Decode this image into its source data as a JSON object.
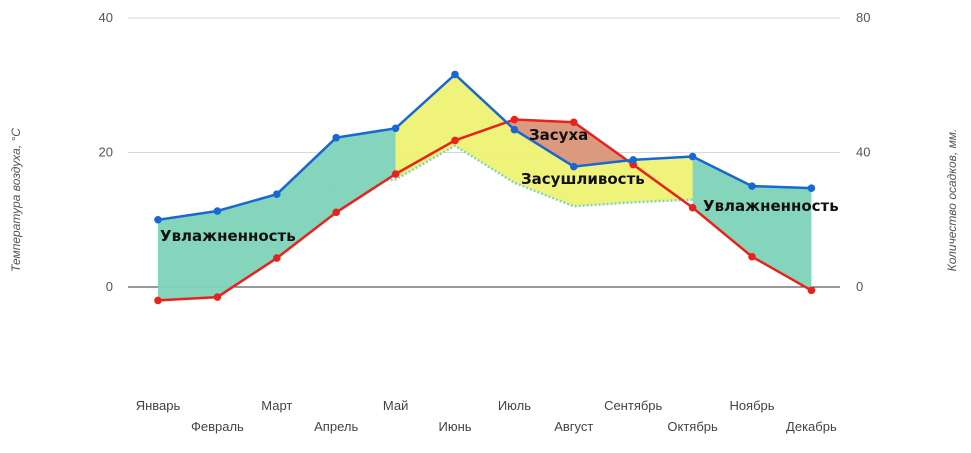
{
  "chart_data": {
    "type": "line",
    "title": "",
    "ylabel_left": "Температура воздуха, °С",
    "ylabel_right": "Количество осадков, мм.",
    "ylim_left": [
      -15,
      40
    ],
    "ylim_right": [
      -30,
      80
    ],
    "yticks_left": [
      "40",
      "20",
      "0"
    ],
    "yticks_right": [
      "80",
      "40",
      "0"
    ],
    "categories": [
      "Январь",
      "Февраль",
      "Март",
      "Апрель",
      "Май",
      "Июнь",
      "Июль",
      "Август",
      "Сентябрь",
      "Октябрь",
      "Ноябрь",
      "Декабрь"
    ],
    "series": [
      {
        "axis": "left",
        "color": "#e8231e",
        "values": [
          -2,
          -1.5,
          4.3,
          11.1,
          16.8,
          21.8,
          24.9,
          24.5,
          18.2,
          11.8,
          4.5,
          -0.5
        ]
      },
      {
        "axis": "right",
        "color": "#1967d2",
        "values": [
          20,
          22.6,
          27.6,
          44.4,
          47.2,
          63.2,
          46.8,
          35.8,
          37.8,
          38.8,
          30,
          29.4
        ]
      },
      {
        "axis": "left",
        "color": "#80d4c0",
        "style": "dotted",
        "values": [
          10,
          11.3,
          9,
          15,
          16,
          21,
          15.5,
          12,
          12.6,
          13,
          10,
          9.5
        ]
      }
    ],
    "annotations": [
      {
        "text": "Увлажненность",
        "color": "#7dd3b7"
      },
      {
        "text": "Засуха",
        "color": "#d99577"
      },
      {
        "text": "Засушливость",
        "color": "#eef26a"
      },
      {
        "text": "Увлажненность",
        "color": "#7dd3b7"
      }
    ],
    "grid": true
  }
}
